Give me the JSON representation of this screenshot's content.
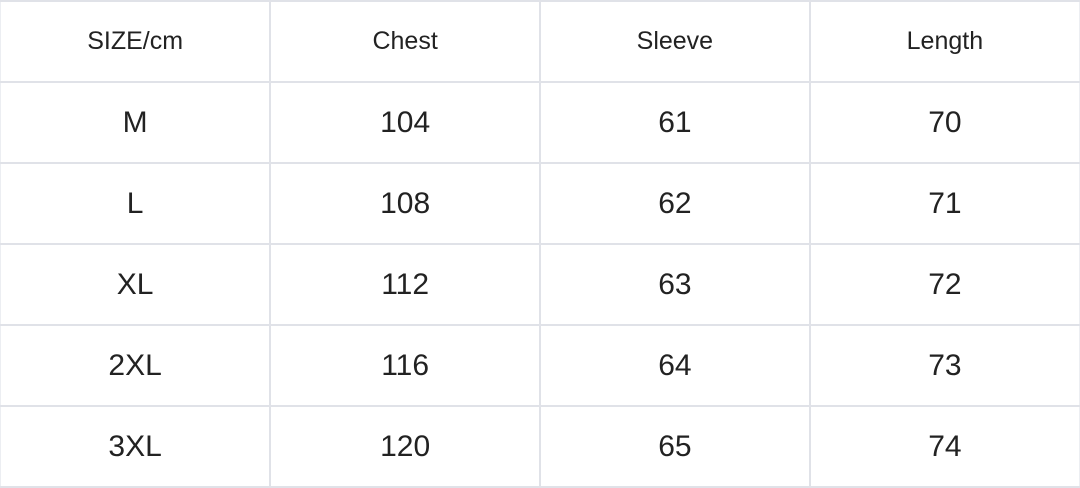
{
  "table": {
    "headers": [
      "SIZE/cm",
      "Chest",
      "Sleeve",
      "Length"
    ],
    "rows": [
      [
        "M",
        "104",
        "61",
        "70"
      ],
      [
        "L",
        "108",
        "62",
        "71"
      ],
      [
        "XL",
        "112",
        "63",
        "72"
      ],
      [
        "2XL",
        "116",
        "64",
        "73"
      ],
      [
        "3XL",
        "120",
        "65",
        "74"
      ]
    ]
  }
}
